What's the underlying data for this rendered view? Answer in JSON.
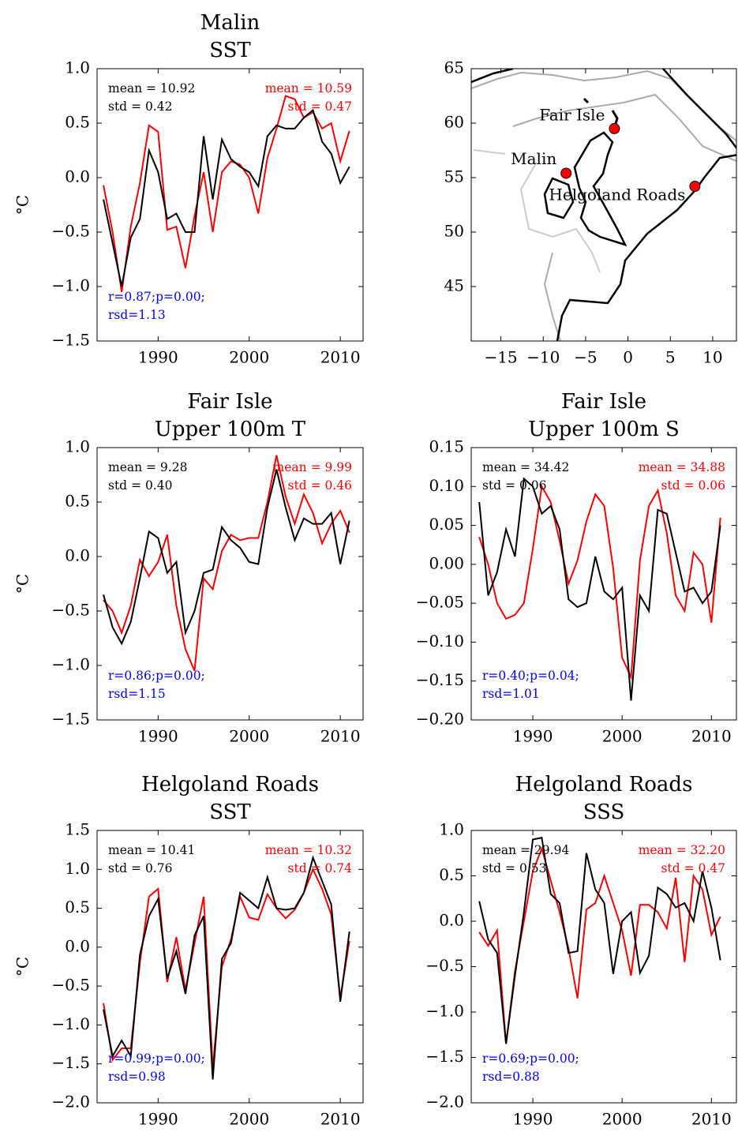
{
  "chart_data": [
    {
      "type": "line",
      "title": [
        "Malin",
        "SST"
      ],
      "ylabel": "°C",
      "x": [
        1984,
        1985,
        1986,
        1987,
        1988,
        1989,
        1990,
        1991,
        1992,
        1993,
        1994,
        1995,
        1996,
        1997,
        1998,
        1999,
        2000,
        2001,
        2002,
        2003,
        2004,
        2005,
        2006,
        2007,
        2008,
        2009,
        2010,
        2011
      ],
      "series": [
        {
          "color": "#ff0000",
          "values": [
            -0.07,
            -0.5,
            -1.05,
            -0.45,
            -0.05,
            0.48,
            0.42,
            -0.48,
            -0.45,
            -0.83,
            -0.35,
            0.05,
            -0.5,
            0.05,
            0.15,
            0.12,
            0.0,
            -0.33,
            0.18,
            0.45,
            0.75,
            0.72,
            0.55,
            0.6,
            0.45,
            0.5,
            0.15,
            0.43
          ]
        },
        {
          "color": "#000000",
          "values": [
            -0.2,
            -0.6,
            -1.0,
            -0.55,
            -0.38,
            0.25,
            0.05,
            -0.38,
            -0.33,
            -0.5,
            -0.5,
            0.38,
            -0.2,
            0.35,
            0.17,
            0.1,
            0.05,
            -0.08,
            0.38,
            0.48,
            0.45,
            0.45,
            0.55,
            0.62,
            0.33,
            0.22,
            -0.05,
            0.1
          ]
        }
      ],
      "xlim": [
        1983.3,
        2012.5
      ],
      "xticks": [
        1990,
        2000,
        2010
      ],
      "ylim": [
        -1.5,
        1.0
      ],
      "yticks": [
        {
          "value": -1.5,
          "label": "−1.5"
        },
        {
          "value": -1.0,
          "label": "−1.0"
        },
        {
          "value": -0.5,
          "label": "−0.5"
        },
        {
          "value": 0,
          "label": "0.0"
        },
        0.5,
        {
          "value": 1.0,
          "label": "1.0"
        }
      ],
      "annotations": [
        {
          "lines": [
            "mean = 10.92",
            "std =  0.42"
          ],
          "color": "#000000",
          "position": "top-left"
        },
        {
          "lines": [
            "mean = 10.59",
            "std =  0.47"
          ],
          "color": "#ff0000",
          "position": "top-right"
        },
        {
          "lines": [
            "r=0.87;p=0.00;",
            "rsd=1.13"
          ],
          "color": "#0000ff",
          "position": "bottom-left"
        }
      ]
    },
    {
      "type": "map",
      "points": [
        {
          "label": "Fair Isle",
          "lon": -1.6,
          "lat": 59.5
        },
        {
          "label": "Malin",
          "lon": -7.3,
          "lat": 55.4
        },
        {
          "label": "Helgoland Roads",
          "lon": 7.9,
          "lat": 54.2
        }
      ],
      "color": "#ff0000",
      "xlim": [
        -18.5,
        12.8
      ],
      "xticks": [
        {
          "value": -15,
          "label": "−15"
        },
        {
          "value": -10,
          "label": "−10"
        },
        {
          "value": -5,
          "label": "−5"
        },
        0,
        5,
        10
      ],
      "ylim": [
        40,
        65
      ],
      "yticks": [
        45,
        50,
        55,
        60,
        65
      ]
    },
    {
      "type": "line",
      "title": [
        "Fair Isle",
        "Upper 100m T"
      ],
      "ylabel": "°C",
      "x": [
        1984,
        1985,
        1986,
        1987,
        1988,
        1989,
        1990,
        1991,
        1992,
        1993,
        1994,
        1995,
        1996,
        1997,
        1998,
        1999,
        2000,
        2001,
        2002,
        2003,
        2004,
        2005,
        2006,
        2007,
        2008,
        2009,
        2010,
        2011
      ],
      "series": [
        {
          "color": "#ff0000",
          "values": [
            -0.4,
            -0.5,
            -0.7,
            -0.45,
            -0.03,
            -0.18,
            -0.05,
            0.2,
            -0.45,
            -0.85,
            -1.05,
            -0.2,
            -0.3,
            0.05,
            0.2,
            0.15,
            0.17,
            0.17,
            0.5,
            0.93,
            0.55,
            0.3,
            0.57,
            0.4,
            0.12,
            0.3,
            0.42,
            0.22
          ]
        },
        {
          "color": "#000000",
          "values": [
            -0.35,
            -0.65,
            -0.8,
            -0.6,
            -0.2,
            0.23,
            0.17,
            -0.15,
            -0.05,
            -0.7,
            -0.5,
            -0.15,
            -0.12,
            0.27,
            0.15,
            0.08,
            -0.05,
            -0.07,
            0.45,
            0.8,
            0.45,
            0.15,
            0.35,
            0.3,
            0.3,
            0.4,
            -0.07,
            0.33
          ]
        }
      ],
      "xlim": [
        1983.3,
        2012.5
      ],
      "xticks": [
        1990,
        2000,
        2010
      ],
      "ylim": [
        -1.5,
        1.0
      ],
      "yticks": [
        {
          "value": -1.5,
          "label": "−1.5"
        },
        {
          "value": -1.0,
          "label": "−1.0"
        },
        {
          "value": -0.5,
          "label": "−0.5"
        },
        {
          "value": 0,
          "label": "0.0"
        },
        0.5,
        {
          "value": 1.0,
          "label": "1.0"
        }
      ],
      "annotations": [
        {
          "lines": [
            "mean =  9.28",
            "std =  0.40"
          ],
          "color": "#000000",
          "position": "top-left"
        },
        {
          "lines": [
            "mean =  9.99",
            "std =  0.46"
          ],
          "color": "#ff0000",
          "position": "top-right"
        },
        {
          "lines": [
            "r=0.86;p=0.00;",
            "rsd=1.15"
          ],
          "color": "#0000ff",
          "position": "bottom-left"
        }
      ]
    },
    {
      "type": "line",
      "title": [
        "Fair Isle",
        "Upper 100m S"
      ],
      "x": [
        1984,
        1985,
        1986,
        1987,
        1988,
        1989,
        1990,
        1991,
        1992,
        1993,
        1994,
        1995,
        1996,
        1997,
        1998,
        1999,
        2000,
        2001,
        2002,
        2003,
        2004,
        2005,
        2006,
        2007,
        2008,
        2009,
        2010,
        2011
      ],
      "series": [
        {
          "color": "#ff0000",
          "values": [
            0.035,
            0.0,
            -0.05,
            -0.07,
            -0.065,
            -0.05,
            0.02,
            0.1,
            0.08,
            0.03,
            -0.025,
            0.005,
            0.055,
            0.09,
            0.075,
            -0.005,
            -0.12,
            -0.145,
            0.005,
            0.075,
            0.095,
            0.04,
            -0.04,
            -0.06,
            0.015,
            0.0,
            -0.075,
            0.06
          ]
        },
        {
          "color": "#000000",
          "values": [
            0.08,
            -0.04,
            -0.01,
            0.045,
            0.01,
            0.11,
            0.1,
            0.065,
            0.075,
            0.045,
            -0.045,
            -0.055,
            -0.05,
            0.01,
            -0.035,
            -0.045,
            -0.03,
            -0.175,
            -0.04,
            -0.06,
            0.07,
            0.065,
            0.015,
            -0.035,
            -0.03,
            -0.05,
            -0.035,
            0.05
          ]
        }
      ],
      "xlim": [
        1983.1,
        2012.8
      ],
      "xticks": [
        1990,
        2000,
        2010
      ],
      "ylim": [
        -0.2,
        0.15
      ],
      "yticks": [
        {
          "value": -0.2,
          "label": "−0.20"
        },
        {
          "value": -0.15,
          "label": "−0.15"
        },
        {
          "value": -0.1,
          "label": "−0.10"
        },
        {
          "value": -0.05,
          "label": "−0.05"
        },
        {
          "value": 0,
          "label": "0.00"
        },
        0.05,
        {
          "value": 0.1,
          "label": "0.10"
        },
        0.15
      ],
      "annotations": [
        {
          "lines": [
            "mean = 34.42",
            "std =  0.06"
          ],
          "color": "#000000",
          "position": "top-left"
        },
        {
          "lines": [
            "mean = 34.88",
            "std =  0.06"
          ],
          "color": "#ff0000",
          "position": "top-right"
        },
        {
          "lines": [
            "r=0.40;p=0.04;",
            "rsd=1.01"
          ],
          "color": "#0000ff",
          "position": "bottom-left"
        }
      ]
    },
    {
      "type": "line",
      "title": [
        "Helgoland Roads",
        "SST"
      ],
      "ylabel": "°C",
      "x": [
        1984,
        1985,
        1986,
        1987,
        1988,
        1989,
        1990,
        1991,
        1992,
        1993,
        1994,
        1995,
        1996,
        1997,
        1998,
        1999,
        2000,
        2001,
        2002,
        2003,
        2004,
        2005,
        2006,
        2007,
        2008,
        2009,
        2010,
        2011
      ],
      "series": [
        {
          "color": "#ff0000",
          "values": [
            -0.72,
            -1.45,
            -1.3,
            -1.3,
            -0.2,
            0.65,
            0.75,
            -0.45,
            0.13,
            -0.55,
            0.05,
            0.65,
            -1.55,
            -0.25,
            0.1,
            0.65,
            0.38,
            0.35,
            0.68,
            0.5,
            0.37,
            0.48,
            0.7,
            1.0,
            0.75,
            0.42,
            -0.65,
            0.08
          ]
        },
        {
          "color": "#000000",
          "values": [
            -0.8,
            -1.4,
            -1.2,
            -1.4,
            -0.1,
            0.4,
            0.62,
            -0.4,
            -0.05,
            -0.6,
            0.15,
            0.4,
            -1.7,
            -0.15,
            0.05,
            0.7,
            0.6,
            0.5,
            0.9,
            0.5,
            0.48,
            0.5,
            0.7,
            1.15,
            0.85,
            0.55,
            -0.7,
            0.2
          ]
        }
      ],
      "xlim": [
        1983.3,
        2012.5
      ],
      "xticks": [
        1990,
        2000,
        2010
      ],
      "ylim": [
        -2.0,
        1.5
      ],
      "yticks": [
        {
          "value": -2.0,
          "label": "−2.0"
        },
        {
          "value": -1.5,
          "label": "−1.5"
        },
        {
          "value": -1.0,
          "label": "−1.0"
        },
        {
          "value": -0.5,
          "label": "−0.5"
        },
        {
          "value": 0,
          "label": "0.0"
        },
        0.5,
        {
          "value": 1.0,
          "label": "1.0"
        },
        1.5
      ],
      "annotations": [
        {
          "lines": [
            "mean = 10.41",
            "std =  0.76"
          ],
          "color": "#000000",
          "position": "top-left"
        },
        {
          "lines": [
            "mean = 10.32",
            "std =  0.74"
          ],
          "color": "#ff0000",
          "position": "top-right"
        },
        {
          "lines": [
            "r=0.99;p=0.00;",
            "rsd=0.98"
          ],
          "color": "#0000ff",
          "position": "bottom-left"
        }
      ]
    },
    {
      "type": "line",
      "title": [
        "Helgoland Roads",
        "SSS"
      ],
      "x": [
        1984,
        1985,
        1986,
        1987,
        1988,
        1989,
        1990,
        1991,
        1992,
        1993,
        1994,
        1995,
        1996,
        1997,
        1998,
        1999,
        2000,
        2001,
        2002,
        2003,
        2004,
        2005,
        2006,
        2007,
        2008,
        2009,
        2010,
        2011
      ],
      "series": [
        {
          "color": "#ff0000",
          "values": [
            -0.12,
            -0.27,
            -0.1,
            -1.35,
            -0.55,
            0.0,
            0.55,
            0.8,
            0.45,
            0.1,
            -0.3,
            -0.85,
            0.13,
            0.2,
            0.5,
            0.2,
            -0.1,
            -0.6,
            0.18,
            0.18,
            0.1,
            -0.08,
            0.48,
            -0.45,
            0.5,
            0.35,
            -0.15,
            0.05
          ]
        },
        {
          "color": "#000000",
          "values": [
            0.22,
            -0.2,
            -0.35,
            -1.35,
            -0.6,
            0.1,
            0.9,
            0.92,
            0.3,
            0.2,
            -0.35,
            -0.33,
            0.75,
            0.35,
            0.2,
            -0.58,
            0.0,
            0.1,
            -0.57,
            -0.38,
            0.37,
            0.3,
            0.15,
            0.2,
            0.0,
            0.55,
            0.15,
            -0.43
          ]
        }
      ],
      "xlim": [
        1983.1,
        2012.8
      ],
      "xticks": [
        1990,
        2000,
        2010
      ],
      "ylim": [
        -2.0,
        1.0
      ],
      "yticks": [
        {
          "value": -2.0,
          "label": "−2.0"
        },
        {
          "value": -1.5,
          "label": "−1.5"
        },
        {
          "value": -1.0,
          "label": "−1.0"
        },
        {
          "value": -0.5,
          "label": "−0.5"
        },
        {
          "value": 0,
          "label": "0.0"
        },
        0.5,
        {
          "value": 1.0,
          "label": "1.0"
        }
      ],
      "annotations": [
        {
          "lines": [
            "mean = 29.94",
            "std =  0.53"
          ],
          "color": "#000000",
          "position": "top-left"
        },
        {
          "lines": [
            "mean = 32.20",
            "std =  0.47"
          ],
          "color": "#ff0000",
          "position": "top-right"
        },
        {
          "lines": [
            "r=0.69;p=0.00;",
            "rsd=0.88"
          ],
          "color": "#0000ff",
          "position": "bottom-left"
        }
      ]
    }
  ]
}
